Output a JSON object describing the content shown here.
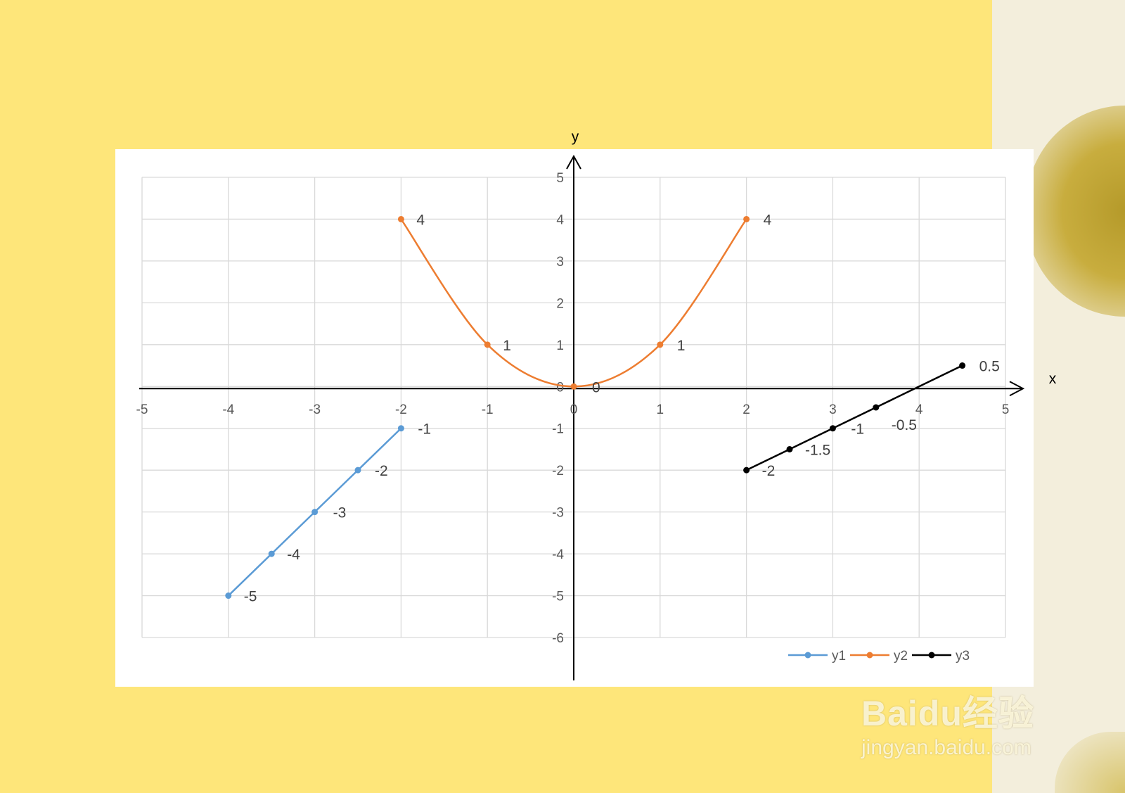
{
  "chart_data": {
    "type": "line",
    "xlabel": "x",
    "ylabel": "y",
    "xlim": [
      -5,
      5
    ],
    "ylim": [
      -6,
      5
    ],
    "x_ticks": [
      "-5",
      "-4",
      "-3",
      "-2",
      "-1",
      "0",
      "1",
      "2",
      "3",
      "4",
      "5"
    ],
    "y_ticks": [
      "5",
      "4",
      "3",
      "2",
      "1",
      "0",
      "-1",
      "-2",
      "-3",
      "-4",
      "-5",
      "-6"
    ],
    "grid": true,
    "legend_position": "bottom-right",
    "series": [
      {
        "name": "y1",
        "color": "#5B9BD5",
        "smooth": false,
        "x": [
          -4,
          -3.5,
          -3,
          -2.5,
          -2
        ],
        "y": [
          -5,
          -4,
          -3,
          -2,
          -1
        ],
        "labels": [
          "-5",
          "-4",
          "-3",
          "-2",
          "-1"
        ]
      },
      {
        "name": "y2",
        "color": "#ED7D31",
        "smooth": true,
        "x": [
          -2,
          -1,
          0,
          1,
          2
        ],
        "y": [
          4,
          1,
          0,
          1,
          4
        ],
        "labels": [
          "4",
          "1",
          "0",
          "1",
          "4"
        ]
      },
      {
        "name": "y3",
        "color": "#000000",
        "smooth": false,
        "x": [
          2,
          2.5,
          3,
          3.5,
          4.5
        ],
        "y": [
          -2,
          -1.5,
          -1,
          -0.5,
          0.5
        ],
        "labels": [
          "-2",
          "-1.5",
          "-1",
          "-0.5",
          "0.5"
        ]
      }
    ]
  },
  "watermark": {
    "logo": "Bai du 经验",
    "url": "jingyan.baidu.com"
  },
  "colors": {
    "background": "#FEE67A",
    "panel": "#FFFFFF",
    "grid": "#D9D9D9"
  }
}
